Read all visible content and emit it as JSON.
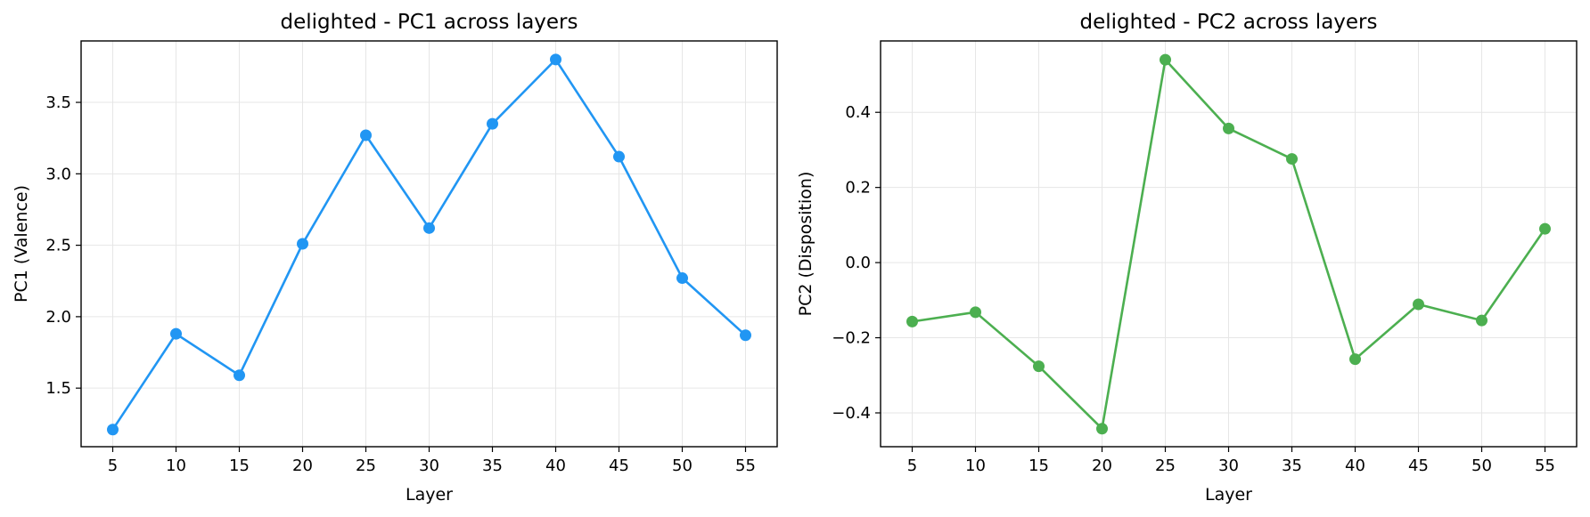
{
  "chart_data": [
    {
      "type": "line",
      "title": "delighted - PC1 across layers",
      "xlabel": "Layer",
      "ylabel": "PC1 (Valence)",
      "x": [
        5,
        10,
        15,
        20,
        25,
        30,
        35,
        40,
        45,
        50,
        55
      ],
      "series": [
        {
          "values": [
            1.21,
            1.88,
            1.59,
            2.51,
            3.27,
            2.62,
            3.35,
            3.8,
            3.12,
            2.27,
            1.87
          ],
          "color": "#2196F3"
        }
      ],
      "xlim": [
        2.5,
        57.5
      ],
      "ylim": [
        1.09,
        3.93
      ],
      "xticks": [
        5,
        10,
        15,
        20,
        25,
        30,
        35,
        40,
        45,
        50,
        55
      ],
      "xtick_labels": [
        "5",
        "10",
        "15",
        "20",
        "25",
        "30",
        "35",
        "40",
        "45",
        "50",
        "55"
      ],
      "yticks": [
        1.5,
        2.0,
        2.5,
        3.0,
        3.5
      ],
      "ytick_labels": [
        "1.5",
        "2.0",
        "2.5",
        "3.0",
        "3.5"
      ],
      "grid": true,
      "marker": "circle"
    },
    {
      "type": "line",
      "title": "delighted - PC2 across layers",
      "xlabel": "Layer",
      "ylabel": "PC2 (Disposition)",
      "x": [
        5,
        10,
        15,
        20,
        25,
        30,
        35,
        40,
        45,
        50,
        55
      ],
      "series": [
        {
          "values": [
            -0.157,
            -0.132,
            -0.276,
            -0.442,
            0.54,
            0.357,
            0.276,
            -0.257,
            -0.111,
            -0.154,
            0.09
          ],
          "color": "#4CAF50"
        }
      ],
      "xlim": [
        2.5,
        57.5
      ],
      "ylim": [
        -0.49,
        0.59
      ],
      "xticks": [
        5,
        10,
        15,
        20,
        25,
        30,
        35,
        40,
        45,
        50,
        55
      ],
      "xtick_labels": [
        "5",
        "10",
        "15",
        "20",
        "25",
        "30",
        "35",
        "40",
        "45",
        "50",
        "55"
      ],
      "yticks": [
        -0.4,
        -0.2,
        0.0,
        0.2,
        0.4
      ],
      "ytick_labels": [
        "−0.4",
        "−0.2",
        "0.0",
        "0.2",
        "0.4"
      ],
      "grid": true,
      "marker": "circle"
    }
  ]
}
